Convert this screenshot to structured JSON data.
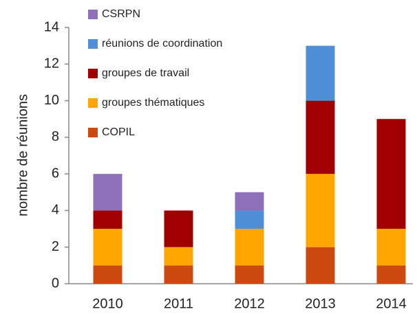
{
  "chart_data": {
    "type": "stacked_bar",
    "y_label": "nombre de réunions",
    "categories": [
      "2010",
      "2011",
      "2012",
      "2013",
      "2014"
    ],
    "series": [
      {
        "name": "COPIL",
        "color": "#cc4a10",
        "values": [
          1,
          1,
          1,
          2,
          1
        ]
      },
      {
        "name": "groupes thématiques",
        "color": "#ffa500",
        "values": [
          2,
          1,
          2,
          4,
          2
        ]
      },
      {
        "name": "groupes de travail",
        "color": "#a00000",
        "values": [
          1,
          2,
          0,
          4,
          6
        ]
      },
      {
        "name": "réunions de coordination",
        "color": "#4f8fd8",
        "values": [
          0,
          0,
          1,
          3,
          0
        ]
      },
      {
        "name": "CSRPN",
        "color": "#8e70b8",
        "values": [
          2,
          0,
          1,
          0,
          0
        ]
      }
    ],
    "ylim": [
      0,
      14
    ],
    "yticks": [
      0,
      2,
      4,
      6,
      8,
      10,
      12,
      14
    ],
    "grid": false,
    "legend": "top-left"
  }
}
